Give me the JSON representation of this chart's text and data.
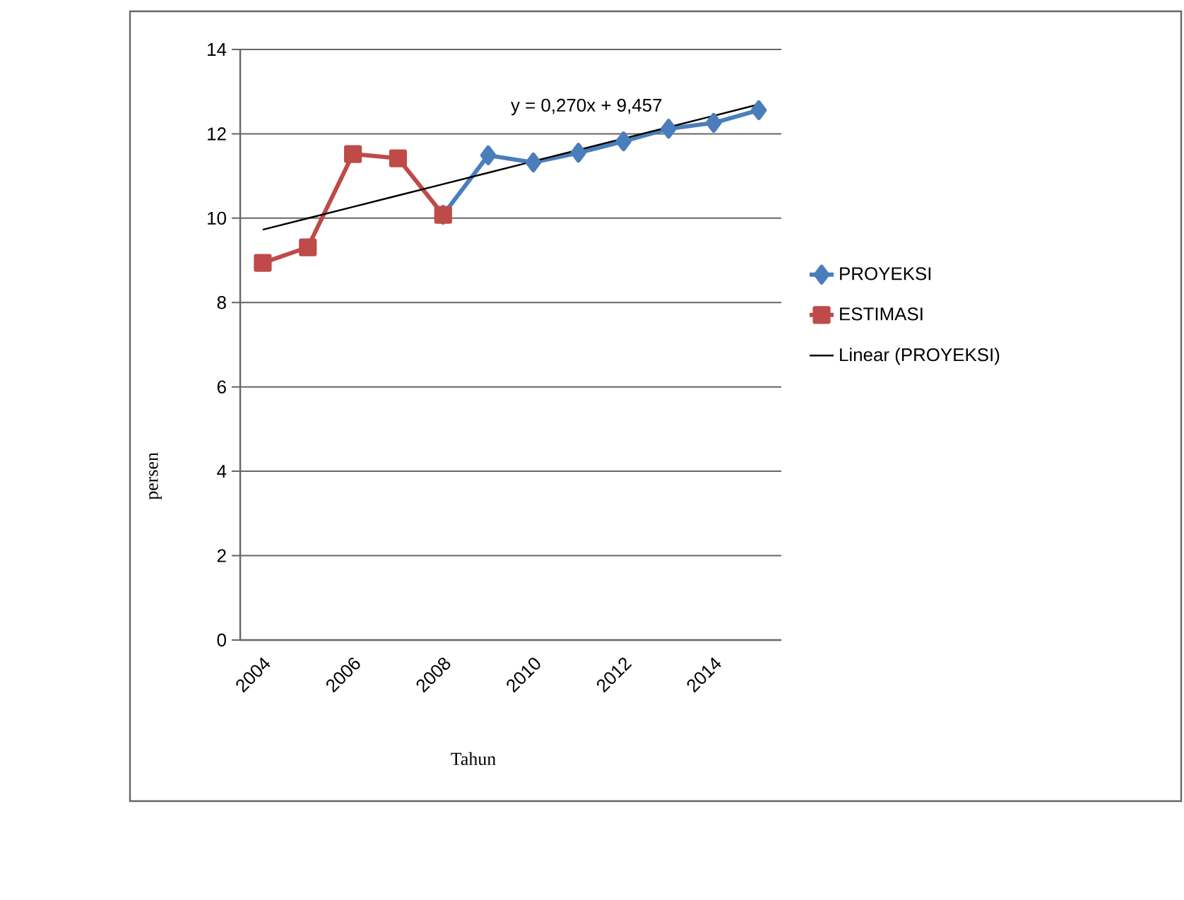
{
  "chart_data": {
    "type": "line",
    "xlabel": "Tahun",
    "ylabel": "persen",
    "categories": [
      "2004",
      null,
      "2006",
      null,
      "2008",
      null,
      "2010",
      null,
      "2012",
      null,
      "2014",
      null
    ],
    "ylim": [
      0,
      14
    ],
    "yticks": [
      0,
      2,
      4,
      6,
      8,
      10,
      12,
      14
    ],
    "grid": "y",
    "legend": "right",
    "series": [
      {
        "name": "PROYEKSI",
        "color": "#4a7ebb",
        "marker": "diamond",
        "values": [
          null,
          null,
          null,
          null,
          10.08,
          11.49,
          11.32,
          11.55,
          11.82,
          12.12,
          12.26,
          12.56
        ]
      },
      {
        "name": "ESTIMASI",
        "color": "#be4b48",
        "marker": "square",
        "values": [
          8.94,
          9.31,
          11.52,
          11.42,
          10.08,
          null,
          null,
          null,
          null,
          null,
          null,
          null
        ]
      },
      {
        "name": "Linear (PROYEKSI)",
        "color": "#000000",
        "marker": "none",
        "values": [
          9.727,
          9.997,
          10.267,
          10.537,
          10.807,
          11.077,
          11.347,
          11.617,
          11.887,
          12.157,
          12.427,
          12.697
        ]
      }
    ],
    "annotations": [
      "y = 0,270x + 9,457"
    ]
  }
}
